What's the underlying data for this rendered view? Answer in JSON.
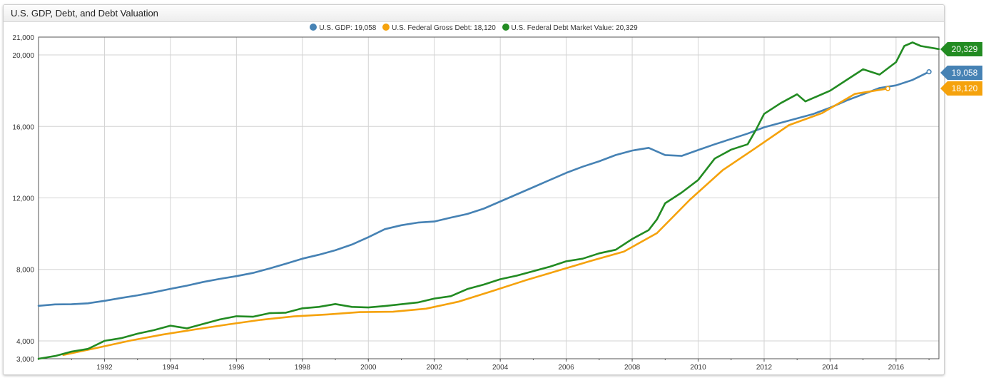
{
  "title": "U.S. GDP, Debt, and Debt Valuation",
  "colors": {
    "gdp": "#4682b4",
    "gross_debt": "#f5a20c",
    "market_value": "#228b22",
    "grid": "#d3d3d3",
    "axis": "#555555"
  },
  "legend": [
    {
      "label": "U.S. GDP: 19,058",
      "color": "#4682b4"
    },
    {
      "label": "U.S. Federal Gross Debt: 18,120",
      "color": "#f5a20c"
    },
    {
      "label": "U.S. Federal Debt Market Value: 20,329",
      "color": "#228b22"
    }
  ],
  "badges": [
    {
      "text": "20,329",
      "color": "#228b22",
      "series": 2
    },
    {
      "text": "19,058",
      "color": "#4682b4",
      "series": 0
    },
    {
      "text": "18,120",
      "color": "#f5a20c",
      "series": 1
    }
  ],
  "chart_data": {
    "type": "line",
    "title": "U.S. GDP, Debt, and Debt Valuation",
    "xlim": [
      1990.0,
      2017.3
    ],
    "ylim": [
      3000,
      21000
    ],
    "x_ticks": [
      "1992",
      "1994",
      "1996",
      "1998",
      "2000",
      "2002",
      "2004",
      "2006",
      "2008",
      "2010",
      "2012",
      "2014",
      "2016"
    ],
    "y_ticks": [
      "3,000",
      "4,000",
      "8,000",
      "12,000",
      "16,000",
      "20,000",
      "21,000"
    ],
    "grid": true,
    "legend_position": "top",
    "series": [
      {
        "name": "U.S. GDP",
        "color": "#4682b4",
        "last_value": 19058,
        "end_marker": true,
        "points": [
          [
            1990.0,
            5960
          ],
          [
            1990.5,
            6040
          ],
          [
            1991.0,
            6050
          ],
          [
            1991.5,
            6100
          ],
          [
            1992.0,
            6240
          ],
          [
            1992.5,
            6400
          ],
          [
            1993.0,
            6550
          ],
          [
            1993.5,
            6720
          ],
          [
            1994.0,
            6910
          ],
          [
            1994.5,
            7090
          ],
          [
            1995.0,
            7300
          ],
          [
            1995.5,
            7470
          ],
          [
            1996.0,
            7620
          ],
          [
            1996.5,
            7800
          ],
          [
            1997.0,
            8050
          ],
          [
            1997.5,
            8320
          ],
          [
            1998.0,
            8600
          ],
          [
            1998.5,
            8820
          ],
          [
            1999.0,
            9070
          ],
          [
            1999.5,
            9390
          ],
          [
            2000.0,
            9800
          ],
          [
            2000.5,
            10250
          ],
          [
            2001.0,
            10470
          ],
          [
            2001.5,
            10620
          ],
          [
            2002.0,
            10680
          ],
          [
            2002.5,
            10900
          ],
          [
            2003.0,
            11100
          ],
          [
            2003.5,
            11400
          ],
          [
            2004.0,
            11800
          ],
          [
            2004.5,
            12200
          ],
          [
            2005.0,
            12600
          ],
          [
            2005.5,
            13000
          ],
          [
            2006.0,
            13400
          ],
          [
            2006.5,
            13750
          ],
          [
            2007.0,
            14050
          ],
          [
            2007.5,
            14400
          ],
          [
            2008.0,
            14650
          ],
          [
            2008.5,
            14800
          ],
          [
            2009.0,
            14400
          ],
          [
            2009.5,
            14350
          ],
          [
            2010.0,
            14680
          ],
          [
            2010.5,
            15000
          ],
          [
            2011.0,
            15300
          ],
          [
            2011.5,
            15600
          ],
          [
            2012.0,
            15950
          ],
          [
            2012.5,
            16200
          ],
          [
            2013.0,
            16450
          ],
          [
            2013.5,
            16700
          ],
          [
            2014.0,
            17050
          ],
          [
            2014.5,
            17450
          ],
          [
            2015.0,
            17800
          ],
          [
            2015.5,
            18150
          ],
          [
            2016.0,
            18300
          ],
          [
            2016.5,
            18600
          ],
          [
            2017.0,
            19058
          ]
        ]
      },
      {
        "name": "U.S. Federal Gross Debt",
        "color": "#f5a20c",
        "last_value": 18120,
        "end_marker": true,
        "points": [
          [
            1990.75,
            3210
          ],
          [
            1991.75,
            3600
          ],
          [
            1992.75,
            4000
          ],
          [
            1993.75,
            4350
          ],
          [
            1994.75,
            4640
          ],
          [
            1995.75,
            4920
          ],
          [
            1996.75,
            5180
          ],
          [
            1997.75,
            5370
          ],
          [
            1998.75,
            5480
          ],
          [
            1999.75,
            5610
          ],
          [
            2000.75,
            5630
          ],
          [
            2001.75,
            5800
          ],
          [
            2002.75,
            6200
          ],
          [
            2003.75,
            6780
          ],
          [
            2004.75,
            7380
          ],
          [
            2005.75,
            7930
          ],
          [
            2006.75,
            8480
          ],
          [
            2007.75,
            9000
          ],
          [
            2008.75,
            10030
          ],
          [
            2009.75,
            11900
          ],
          [
            2010.75,
            13560
          ],
          [
            2011.75,
            14800
          ],
          [
            2012.75,
            16070
          ],
          [
            2013.75,
            16740
          ],
          [
            2014.75,
            17820
          ],
          [
            2015.75,
            18120
          ]
        ]
      },
      {
        "name": "U.S. Federal Debt Market Value",
        "color": "#228b22",
        "last_value": 20329,
        "end_marker": false,
        "points": [
          [
            1990.0,
            3000
          ],
          [
            1990.5,
            3150
          ],
          [
            1991.0,
            3400
          ],
          [
            1991.5,
            3550
          ],
          [
            1992.0,
            4000
          ],
          [
            1992.5,
            4150
          ],
          [
            1993.0,
            4400
          ],
          [
            1993.5,
            4600
          ],
          [
            1994.0,
            4850
          ],
          [
            1994.5,
            4700
          ],
          [
            1995.0,
            4950
          ],
          [
            1995.5,
            5200
          ],
          [
            1996.0,
            5380
          ],
          [
            1996.5,
            5350
          ],
          [
            1997.0,
            5550
          ],
          [
            1997.5,
            5580
          ],
          [
            1998.0,
            5820
          ],
          [
            1998.5,
            5900
          ],
          [
            1999.0,
            6060
          ],
          [
            1999.5,
            5900
          ],
          [
            2000.0,
            5870
          ],
          [
            2000.5,
            5950
          ],
          [
            2001.0,
            6050
          ],
          [
            2001.5,
            6150
          ],
          [
            2002.0,
            6370
          ],
          [
            2002.5,
            6500
          ],
          [
            2003.0,
            6900
          ],
          [
            2003.5,
            7150
          ],
          [
            2004.0,
            7450
          ],
          [
            2004.5,
            7650
          ],
          [
            2005.0,
            7900
          ],
          [
            2005.5,
            8150
          ],
          [
            2006.0,
            8450
          ],
          [
            2006.5,
            8600
          ],
          [
            2007.0,
            8900
          ],
          [
            2007.5,
            9100
          ],
          [
            2008.0,
            9700
          ],
          [
            2008.5,
            10200
          ],
          [
            2008.75,
            10800
          ],
          [
            2009.0,
            11700
          ],
          [
            2009.5,
            12300
          ],
          [
            2010.0,
            13000
          ],
          [
            2010.5,
            14200
          ],
          [
            2011.0,
            14700
          ],
          [
            2011.5,
            15000
          ],
          [
            2011.75,
            15800
          ],
          [
            2012.0,
            16700
          ],
          [
            2012.5,
            17300
          ],
          [
            2013.0,
            17800
          ],
          [
            2013.25,
            17400
          ],
          [
            2013.5,
            17600
          ],
          [
            2014.0,
            18000
          ],
          [
            2014.5,
            18600
          ],
          [
            2015.0,
            19200
          ],
          [
            2015.5,
            18900
          ],
          [
            2016.0,
            19600
          ],
          [
            2016.25,
            20500
          ],
          [
            2016.5,
            20700
          ],
          [
            2016.75,
            20500
          ],
          [
            2017.3,
            20329
          ]
        ]
      }
    ]
  }
}
